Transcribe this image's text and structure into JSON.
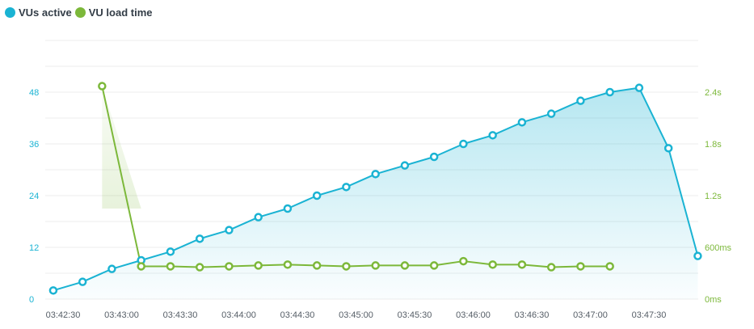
{
  "legend": {
    "vus_label": "VUs active",
    "load_label": "VU load time"
  },
  "colors": {
    "vus": "#1ab3d3",
    "load": "#7cb83a",
    "grid": "#ececec",
    "xtick": "#555d66"
  },
  "chart_data": {
    "type": "line",
    "x_ticks": [
      "03:42:30",
      "03:43:00",
      "03:43:30",
      "03:44:00",
      "03:44:30",
      "03:45:00",
      "03:45:30",
      "03:46:00",
      "03:46:30",
      "03:47:00",
      "03:47:30"
    ],
    "y_left": {
      "ticks": [
        "0",
        "12",
        "24",
        "36",
        "48"
      ],
      "values": [
        0,
        12,
        24,
        36,
        48
      ],
      "range": [
        0,
        60
      ]
    },
    "y_right": {
      "ticks": [
        "0ms",
        "600ms",
        "1.2s",
        "1.8s",
        "2.4s"
      ],
      "values": [
        0,
        0.6,
        1.2,
        1.8,
        2.4
      ],
      "range": [
        0,
        3.0
      ],
      "unit": "s"
    },
    "series": [
      {
        "name": "VUs active",
        "axis": "left",
        "area": true,
        "x": [
          "03:42:25",
          "03:42:40",
          "03:42:55",
          "03:43:10",
          "03:43:25",
          "03:43:40",
          "03:43:55",
          "03:44:10",
          "03:44:25",
          "03:44:40",
          "03:44:55",
          "03:45:10",
          "03:45:25",
          "03:45:40",
          "03:45:55",
          "03:46:10",
          "03:46:25",
          "03:46:40",
          "03:46:55",
          "03:47:10",
          "03:47:25",
          "03:47:40",
          "03:47:55"
        ],
        "values": [
          2,
          4,
          7,
          9,
          11,
          14,
          16,
          19,
          21,
          24,
          26,
          29,
          31,
          33,
          36,
          38,
          41,
          43,
          46,
          48,
          49,
          35,
          10
        ]
      },
      {
        "name": "VU load time",
        "axis": "right",
        "area": false,
        "x": [
          "03:42:50",
          "03:43:10",
          "03:43:25",
          "03:43:40",
          "03:43:55",
          "03:44:10",
          "03:44:25",
          "03:44:40",
          "03:44:55",
          "03:45:10",
          "03:45:25",
          "03:45:40",
          "03:45:55",
          "03:46:10",
          "03:46:25",
          "03:46:40",
          "03:46:55",
          "03:47:10"
        ],
        "values": [
          2.47,
          0.38,
          0.38,
          0.37,
          0.38,
          0.39,
          0.4,
          0.39,
          0.38,
          0.39,
          0.39,
          0.39,
          0.44,
          0.4,
          0.4,
          0.37,
          0.38,
          0.38
        ]
      }
    ]
  }
}
